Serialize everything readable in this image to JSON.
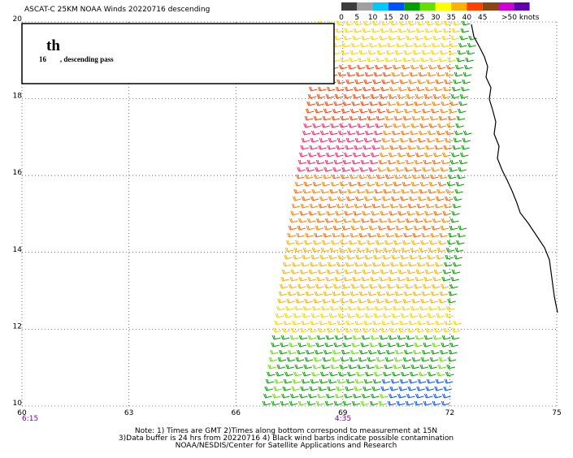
{
  "header": {
    "title": "ASCAT-C 25KM NOAA Winds 20220716 descending"
  },
  "colorbar": {
    "labels": [
      "0",
      "5",
      "10",
      "15",
      "20",
      "25",
      "30",
      "35",
      "40",
      "45",
      ">50 knots"
    ],
    "colors": [
      "#3c3c3c",
      "#a0a0a0",
      "#00c8ff",
      "#0050ff",
      "#00a000",
      "#64e000",
      "#ffff00",
      "#ffb000",
      "#ff4000",
      "#8b4513",
      "#d000d0",
      "#6000b0"
    ]
  },
  "map": {
    "lat_labels": [
      "20",
      "18",
      "16",
      "14",
      "12",
      "10"
    ],
    "lon_labels": [
      "60",
      "63",
      "66",
      "69",
      "72",
      "75"
    ],
    "time_labels": [
      "6:15",
      "4:35"
    ]
  },
  "annotation": {
    "day": "16",
    "suffix": "th",
    "text": ", descending pass"
  },
  "notes": [
    "Note: 1) Times are GMT 2)Times along bottom correspond to measurement at 15N",
    "3)Data buffer is 24 hrs from 20220716 4) Black wind barbs indicate possible contamination",
    "NOAA/NESDIS/Center for Satellite Applications and Research"
  ]
}
